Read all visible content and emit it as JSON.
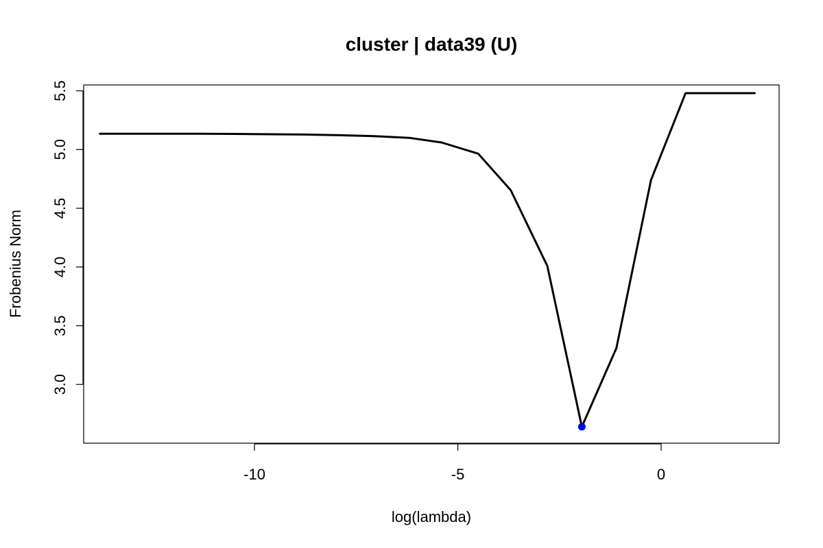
{
  "chart_data": {
    "type": "line",
    "title": "cluster | data39 (U)",
    "xlabel": "log(lambda)",
    "ylabel": "Frobenius Norm",
    "xlim": [
      -14.2,
      2.9
    ],
    "ylim": [
      2.5,
      5.55
    ],
    "x_ticks": [
      -10,
      -5,
      0
    ],
    "x_tick_labels": [
      "-10",
      "-5",
      "0"
    ],
    "y_ticks": [
      3.0,
      3.5,
      4.0,
      4.5,
      5.0,
      5.5
    ],
    "y_tick_labels": [
      "3.0",
      "3.5",
      "4.0",
      "4.5",
      "5.0",
      "5.5"
    ],
    "grid": false,
    "series": [
      {
        "color": "#000000",
        "x": [
          -13.8,
          -13.0,
          -12.1,
          -11.3,
          -10.5,
          -9.6,
          -8.8,
          -7.9,
          -7.1,
          -6.2,
          -5.4,
          -4.5,
          -3.7,
          -2.8,
          -1.95,
          -1.1,
          -0.25,
          0.6,
          2.3
        ],
        "y": [
          5.135,
          5.135,
          5.135,
          5.134,
          5.133,
          5.13,
          5.128,
          5.122,
          5.115,
          5.1,
          5.06,
          4.965,
          4.655,
          4.01,
          2.64,
          3.31,
          4.74,
          5.48,
          5.48
        ]
      }
    ],
    "highlight_point": {
      "x": -1.95,
      "y": 2.64,
      "color": "#0000ff"
    }
  }
}
